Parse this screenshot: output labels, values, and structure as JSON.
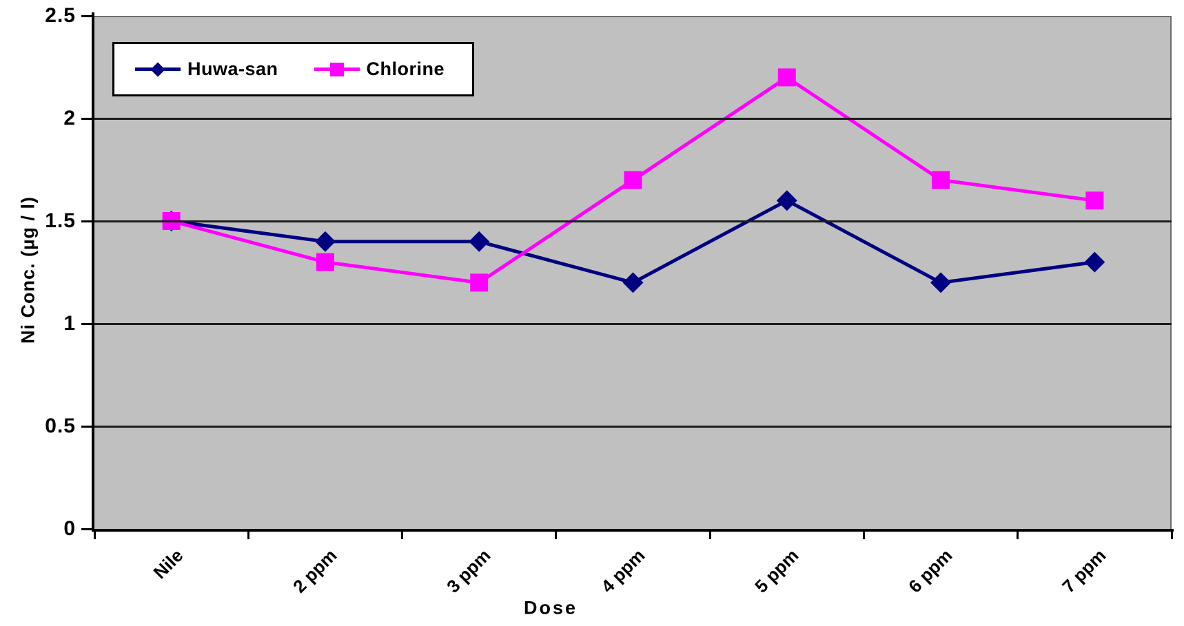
{
  "chart_data": {
    "type": "line",
    "xlabel": "Dose",
    "ylabel": "Ni Conc. (µg / l)",
    "categories": [
      "Nile",
      "2 ppm",
      "3 ppm",
      "4 ppm",
      "5 ppm",
      "6 ppm",
      "7 ppm"
    ],
    "series": [
      {
        "name": "Huwa-san",
        "color": "#000080",
        "marker": "diamond",
        "values": [
          1.5,
          1.4,
          1.4,
          1.2,
          1.6,
          1.2,
          1.3
        ]
      },
      {
        "name": "Chlorine",
        "color": "#FF00FF",
        "marker": "square",
        "values": [
          1.5,
          1.3,
          1.2,
          1.7,
          2.2,
          1.7,
          1.6
        ]
      }
    ],
    "ylim": [
      0,
      2.5
    ],
    "yticks": [
      {
        "value": 0,
        "label": "0"
      },
      {
        "value": 0.5,
        "label": "0.5"
      },
      {
        "value": 1,
        "label": "1"
      },
      {
        "value": 1.5,
        "label": "1.5"
      },
      {
        "value": 2,
        "label": "2"
      },
      {
        "value": 2.5,
        "label": "2.5"
      }
    ],
    "grid": true,
    "legend_position": "top-left",
    "colors": {
      "plot_bg": "#C0C0C0",
      "grid": "#1c1c1c",
      "axis": "#000000",
      "page_bg": "#FFFFFF",
      "legend_bg": "#FFFFFF",
      "legend_border": "#000000"
    }
  }
}
